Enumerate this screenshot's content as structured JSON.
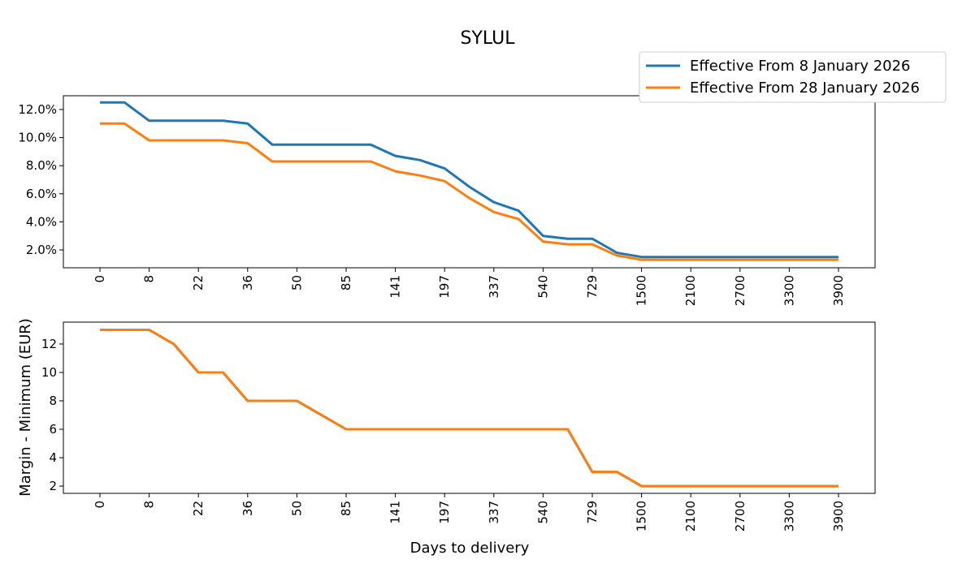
{
  "chart_data": [
    {
      "type": "line",
      "title": "SYLUL",
      "xlabel": "",
      "ylabel": "",
      "x_tick_labels": [
        "0",
        "8",
        "22",
        "36",
        "50",
        "85",
        "141",
        "197",
        "337",
        "540",
        "729",
        "1500",
        "2100",
        "2700",
        "3300",
        "3900"
      ],
      "y_ticks": [
        2,
        4,
        6,
        8,
        10,
        12
      ],
      "y_tick_labels": [
        "2.0%",
        "4.0%",
        "6.0%",
        "8.0%",
        "10.0%",
        "12.0%"
      ],
      "ylim": [
        0.73,
        12.98
      ],
      "y_unit": "%",
      "legend_placement": "upper-right, outside",
      "grid": false,
      "series": [
        {
          "name": "Effective From 8 January 2026",
          "color": "#1f77b4",
          "values": [
            12.5,
            12.5,
            11.2,
            11.2,
            11.2,
            11.2,
            11.0,
            9.5,
            9.5,
            9.5,
            9.5,
            9.5,
            8.7,
            8.4,
            7.8,
            6.5,
            5.4,
            4.8,
            3.0,
            2.8,
            2.8,
            1.8,
            1.5,
            1.5,
            1.5,
            1.5,
            1.5,
            1.5,
            1.5,
            1.5,
            1.5
          ]
        },
        {
          "name": "Effective From 28 January 2026",
          "color": "#ff7f0e",
          "values": [
            11.0,
            11.0,
            9.8,
            9.8,
            9.8,
            9.8,
            9.6,
            8.3,
            8.3,
            8.3,
            8.3,
            8.3,
            7.6,
            7.3,
            6.9,
            5.7,
            4.7,
            4.2,
            2.6,
            2.4,
            2.4,
            1.6,
            1.3,
            1.3,
            1.3,
            1.3,
            1.3,
            1.3,
            1.3,
            1.3,
            1.3
          ]
        }
      ]
    },
    {
      "type": "line",
      "xlabel": "Days to delivery",
      "ylabel": "Margin -  Minimum (EUR)",
      "x_tick_labels": [
        "0",
        "8",
        "22",
        "36",
        "50",
        "85",
        "141",
        "197",
        "337",
        "540",
        "729",
        "1500",
        "2100",
        "2700",
        "3300",
        "3900"
      ],
      "y_ticks": [
        2,
        4,
        6,
        8,
        10,
        12
      ],
      "y_tick_labels": [
        "2",
        "4",
        "6",
        "8",
        "10",
        "12"
      ],
      "ylim": [
        1.49,
        13.54
      ],
      "grid": false,
      "series": [
        {
          "name": "Effective From 8 January 2026",
          "color": "#1f77b4",
          "values": [
            13,
            13,
            13,
            12,
            10,
            10,
            8,
            8,
            8,
            7,
            6,
            6,
            6,
            6,
            6,
            6,
            6,
            6,
            6,
            6,
            3,
            3,
            2,
            2,
            2,
            2,
            2,
            2,
            2,
            2,
            2
          ]
        },
        {
          "name": "Effective From 28 January 2026",
          "color": "#ff7f0e",
          "values": [
            13,
            13,
            13,
            12,
            10,
            10,
            8,
            8,
            8,
            7,
            6,
            6,
            6,
            6,
            6,
            6,
            6,
            6,
            6,
            6,
            3,
            3,
            2,
            2,
            2,
            2,
            2,
            2,
            2,
            2,
            2
          ]
        }
      ]
    }
  ]
}
